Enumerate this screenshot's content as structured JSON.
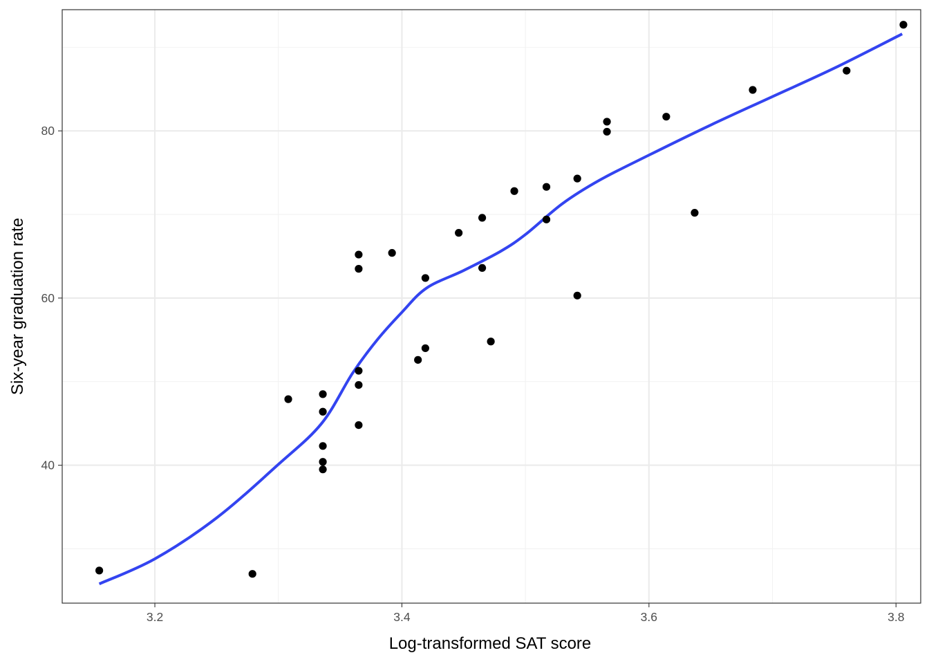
{
  "chart_data": {
    "type": "scatter",
    "title": "",
    "xlabel": "Log-transformed SAT score",
    "ylabel": "Six-year graduation rate",
    "xlim": [
      3.125,
      3.82
    ],
    "ylim": [
      23.5,
      94.5
    ],
    "x_ticks": [
      3.2,
      3.4,
      3.6,
      3.8
    ],
    "x_tick_labels": [
      "3.2",
      "3.4",
      "3.6",
      "3.8"
    ],
    "y_ticks": [
      40,
      60,
      80
    ],
    "y_tick_labels": [
      "40",
      "60",
      "80"
    ],
    "x_minor_gridlines": [
      3.3,
      3.5,
      3.7
    ],
    "y_minor_gridlines": [
      30,
      50,
      70,
      90
    ],
    "grid": true,
    "legend": "none",
    "theme": "bw",
    "colors": {
      "points": "#000000",
      "smooth_line": "#3344f0",
      "major_grid": "#ebebeb",
      "minor_grid": "#f2f2f2",
      "panel_border": "#333333",
      "tick_text": "#4d4d4d"
    },
    "points": [
      {
        "x": 3.155,
        "y": 27.4
      },
      {
        "x": 3.279,
        "y": 27.0
      },
      {
        "x": 3.308,
        "y": 47.9
      },
      {
        "x": 3.336,
        "y": 48.5
      },
      {
        "x": 3.336,
        "y": 46.4
      },
      {
        "x": 3.336,
        "y": 42.3
      },
      {
        "x": 3.336,
        "y": 40.4
      },
      {
        "x": 3.336,
        "y": 39.5
      },
      {
        "x": 3.365,
        "y": 65.2
      },
      {
        "x": 3.365,
        "y": 63.5
      },
      {
        "x": 3.365,
        "y": 51.3
      },
      {
        "x": 3.365,
        "y": 49.6
      },
      {
        "x": 3.365,
        "y": 44.8
      },
      {
        "x": 3.392,
        "y": 65.4
      },
      {
        "x": 3.413,
        "y": 52.6
      },
      {
        "x": 3.419,
        "y": 62.4
      },
      {
        "x": 3.419,
        "y": 54.0
      },
      {
        "x": 3.446,
        "y": 67.8
      },
      {
        "x": 3.465,
        "y": 69.6
      },
      {
        "x": 3.465,
        "y": 63.6
      },
      {
        "x": 3.472,
        "y": 54.8
      },
      {
        "x": 3.491,
        "y": 72.8
      },
      {
        "x": 3.517,
        "y": 73.3
      },
      {
        "x": 3.517,
        "y": 69.4
      },
      {
        "x": 3.542,
        "y": 74.3
      },
      {
        "x": 3.542,
        "y": 60.3
      },
      {
        "x": 3.566,
        "y": 81.1
      },
      {
        "x": 3.566,
        "y": 79.9
      },
      {
        "x": 3.614,
        "y": 81.7
      },
      {
        "x": 3.637,
        "y": 70.2
      },
      {
        "x": 3.684,
        "y": 84.9
      },
      {
        "x": 3.76,
        "y": 87.2
      },
      {
        "x": 3.806,
        "y": 92.7
      }
    ],
    "series": [
      {
        "type": "smooth",
        "x": [
          3.155,
          3.2,
          3.25,
          3.3,
          3.335,
          3.36,
          3.38,
          3.4,
          3.42,
          3.45,
          3.48,
          3.5,
          3.53,
          3.56,
          3.6,
          3.65,
          3.7,
          3.75,
          3.805
        ],
        "y": [
          25.8,
          28.8,
          33.7,
          40.1,
          45.0,
          51.0,
          55.0,
          58.3,
          61.2,
          63.3,
          65.6,
          67.6,
          71.3,
          74.1,
          77.1,
          80.7,
          84.1,
          87.5,
          91.6
        ]
      }
    ]
  }
}
